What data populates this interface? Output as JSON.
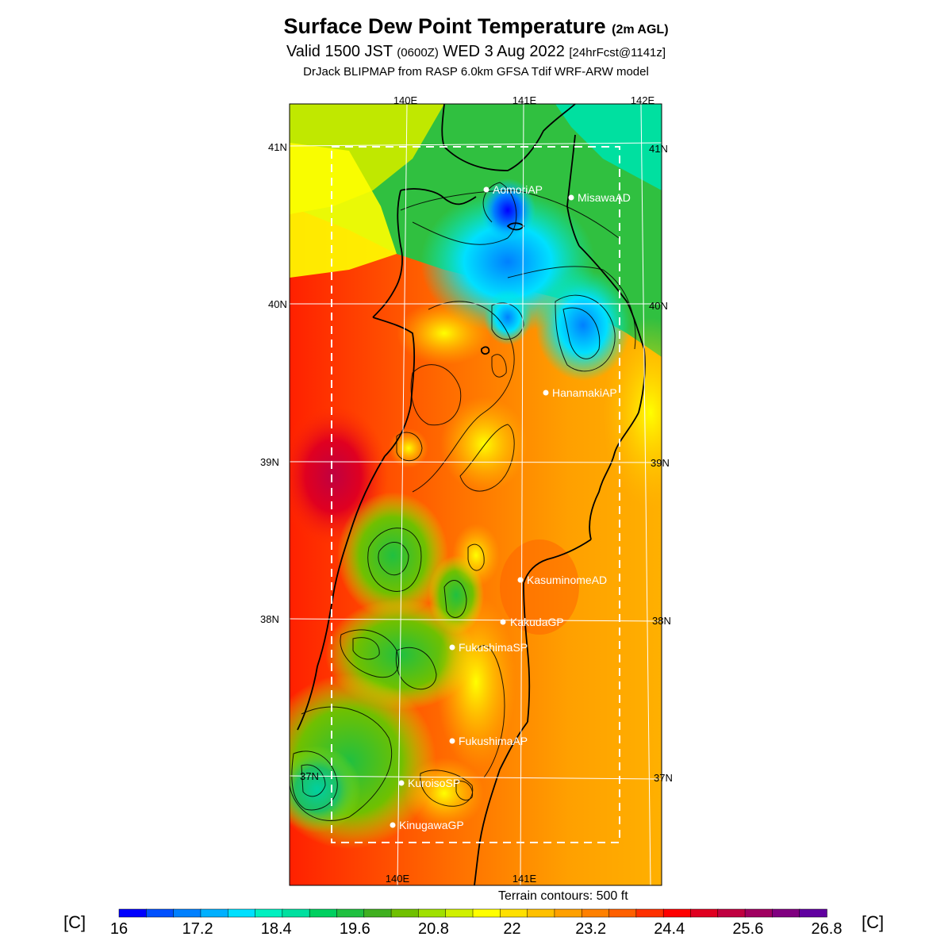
{
  "title": {
    "main": "Surface Dew Point Temperature",
    "main_suffix": "(2m AGL)",
    "valid_prefix": "Valid 1500 JST",
    "valid_zulu": "(0600Z)",
    "valid_date": "WED 3 Aug 2022",
    "forecast": "[24hrFcst@1141z]",
    "model": "DrJack BLIPMAP from RASP 6.0km GFSA Tdif WRF-ARW model"
  },
  "axes": {
    "lon_top": [
      "140E",
      "141E",
      "142E"
    ],
    "lon_bottom": [
      "140E",
      "141E"
    ],
    "lat_left": [
      "41N",
      "40N",
      "39N",
      "38N",
      "37N"
    ],
    "lat_right": [
      "41N",
      "40N",
      "39N",
      "38N",
      "37N"
    ]
  },
  "stations": [
    {
      "name": "AomoriAP"
    },
    {
      "name": "MisawaAD"
    },
    {
      "name": "HanamakiAP"
    },
    {
      "name": "KasuminomeAD"
    },
    {
      "name": "KakudaGP"
    },
    {
      "name": "FukushimaSP"
    },
    {
      "name": "FukushimaAP"
    },
    {
      "name": "KuroisoSP"
    },
    {
      "name": "KinugawaGP"
    }
  ],
  "terrain_note": "Terrain contours: 500 ft",
  "colorbar": {
    "unit_left": "[C]",
    "unit_right": "[C]",
    "tick_labels": [
      "16",
      "17.2",
      "18.4",
      "19.6",
      "20.8",
      "22",
      "23.2",
      "24.4",
      "25.6",
      "26.8"
    ],
    "colors": [
      "#0000ff",
      "#0050ff",
      "#0080ff",
      "#00b0ff",
      "#00e0ff",
      "#00f0c0",
      "#00e0a0",
      "#00d060",
      "#20c040",
      "#40b020",
      "#70c000",
      "#a0e000",
      "#d0f000",
      "#ffff00",
      "#ffe000",
      "#ffc000",
      "#ffa000",
      "#ff8000",
      "#ff6000",
      "#ff3000",
      "#ff0000",
      "#e00020",
      "#c00040",
      "#a00060",
      "#800080",
      "#6000a0"
    ]
  }
}
